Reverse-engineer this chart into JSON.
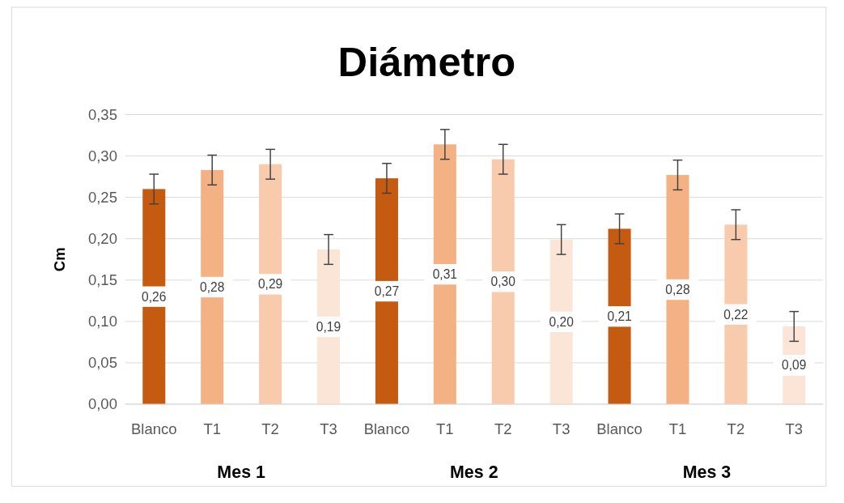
{
  "chart_data": {
    "type": "bar",
    "title": "Diámetro",
    "ylabel": "Cm",
    "categories": [
      "Blanco",
      "T1",
      "T2",
      "T3",
      "Blanco",
      "T1",
      "T2",
      "T3",
      "Blanco",
      "T1",
      "T2",
      "T3"
    ],
    "values": [
      0.26,
      0.283,
      0.29,
      0.187,
      0.273,
      0.314,
      0.296,
      0.199,
      0.212,
      0.277,
      0.217,
      0.094
    ],
    "colors": [
      "#c55a11",
      "#f4b183",
      "#f8cbad",
      "#fbe5d6",
      "#c55a11",
      "#f4b183",
      "#f8cbad",
      "#fbe5d6",
      "#c55a11",
      "#f4b183",
      "#f8cbad",
      "#fbe5d6"
    ],
    "errors": [
      0.018,
      0.018,
      0.018,
      0.018,
      0.018,
      0.018,
      0.018,
      0.018,
      0.018,
      0.018,
      0.018,
      0.018
    ],
    "value_labels": [
      "0,26",
      "0,28",
      "0,29",
      "0,19",
      "0,27",
      "0,31",
      "0,30",
      "0,20",
      "0,21",
      "0,28",
      "0,22",
      "0,09"
    ],
    "ylim": [
      0,
      0.35
    ],
    "yticks": [
      {
        "value": 0,
        "label": "0,00"
      },
      {
        "value": 0.05,
        "label": "0,05"
      },
      {
        "value": 0.1,
        "label": "0,10"
      },
      {
        "value": 0.15,
        "label": "0,15"
      },
      {
        "value": 0.2,
        "label": "0,20"
      },
      {
        "value": 0.25,
        "label": "0,25"
      },
      {
        "value": 0.3,
        "label": "0,30"
      },
      {
        "value": 0.35,
        "label": "0,35"
      }
    ],
    "grid": "y",
    "annotations": [
      "Mes 1",
      "Mes 2",
      "Mes 3"
    ]
  }
}
